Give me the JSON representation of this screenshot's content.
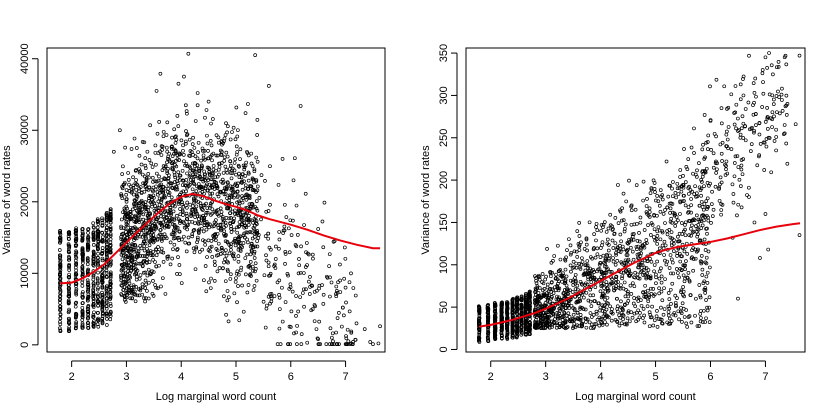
{
  "colors": {
    "points": "#000000",
    "trend": "#e8000b",
    "axes": "#000000",
    "background": "#ffffff"
  },
  "chart_data": [
    {
      "type": "scatter",
      "title": "",
      "xlabel": "Log marginal word count",
      "ylabel": "Variance of word rates",
      "xlim": [
        1.55,
        7.72
      ],
      "ylim": [
        -1000,
        41500
      ],
      "xticks": [
        2,
        3,
        4,
        5,
        6,
        7
      ],
      "xtick_labels": [
        "2",
        "3",
        "4",
        "5",
        "6",
        "7"
      ],
      "yticks": [
        0,
        10000,
        20000,
        30000,
        40000
      ],
      "ytick_labels": [
        "0",
        "10000",
        "20000",
        "30000",
        "40000"
      ],
      "grid": false,
      "point_style": "open circle",
      "columns": {
        "x": [
          1.79,
          1.95,
          2.08,
          2.2,
          2.3,
          2.4,
          2.48,
          2.56,
          2.64,
          2.71
        ],
        "ymin": [
          1500,
          1800,
          2000,
          2100,
          2200,
          2300,
          2400,
          2500,
          2600,
          2700
        ],
        "ymax": [
          16000,
          16000,
          16500,
          16800,
          17000,
          17300,
          17600,
          18000,
          18500,
          19000
        ]
      },
      "cloud": {
        "center": [
          4.0,
          20000
        ],
        "xrange": [
          2.9,
          5.4
        ],
        "yrange": [
          6000,
          36000
        ]
      },
      "outliers": [
        [
          4.13,
          40700
        ],
        [
          5.35,
          40500
        ],
        [
          3.62,
          37900
        ],
        [
          4.05,
          37500
        ],
        [
          3.95,
          36500
        ],
        [
          5.6,
          36200
        ],
        [
          3.55,
          35500
        ],
        [
          4.3,
          35200
        ],
        [
          6.18,
          33400
        ],
        [
          2.77,
          27000
        ],
        [
          2.88,
          30000
        ],
        [
          4.5,
          34000
        ],
        [
          5.85,
          26000
        ],
        [
          6.05,
          23000
        ],
        [
          6.5,
          16200
        ],
        [
          6.8,
          14500
        ],
        [
          6.35,
          9500
        ],
        [
          6.6,
          7000
        ],
        [
          6.9,
          9000
        ],
        [
          7.0,
          8000
        ],
        [
          6.4,
          5000
        ],
        [
          6.95,
          5200
        ],
        [
          7.2,
          3000
        ],
        [
          7.35,
          2200
        ],
        [
          6.75,
          1000
        ],
        [
          6.5,
          800
        ],
        [
          7.05,
          500
        ],
        [
          7.45,
          400
        ],
        [
          7.63,
          2600
        ],
        [
          7.1,
          200
        ],
        [
          6.2,
          1500
        ],
        [
          6.0,
          2500
        ],
        [
          5.8,
          5000
        ],
        [
          5.65,
          6500
        ],
        [
          6.15,
          12000
        ],
        [
          5.9,
          13000
        ],
        [
          7.6,
          200
        ],
        [
          7.5,
          100
        ],
        [
          6.3,
          300
        ]
      ],
      "series": [
        {
          "mode": "line",
          "x": [
            1.79,
            2.0,
            2.2,
            2.4,
            2.6,
            2.8,
            3.0,
            3.2,
            3.4,
            3.6,
            3.8,
            4.0,
            4.2,
            4.4,
            4.6,
            4.8,
            5.0,
            5.2,
            5.4,
            5.6,
            5.8,
            6.0,
            6.3,
            6.6,
            6.9,
            7.2,
            7.5,
            7.63
          ],
          "y": [
            8600,
            8700,
            9300,
            10200,
            11300,
            12800,
            14300,
            15800,
            17200,
            18600,
            19800,
            20700,
            21100,
            20800,
            20200,
            19700,
            19300,
            18800,
            18100,
            17600,
            17200,
            16800,
            16100,
            15300,
            14600,
            14000,
            13500,
            13500
          ]
        }
      ]
    },
    {
      "type": "scatter",
      "title": "",
      "xlabel": "Log marginal word count",
      "ylabel": "Variance of word rates",
      "xlim": [
        1.55,
        7.72
      ],
      "ylim": [
        -3,
        356
      ],
      "xticks": [
        2,
        3,
        4,
        5,
        6,
        7
      ],
      "xtick_labels": [
        "2",
        "3",
        "4",
        "5",
        "6",
        "7"
      ],
      "yticks": [
        0,
        50,
        100,
        150,
        200,
        250,
        300,
        350
      ],
      "ytick_labels": [
        "0",
        "50",
        "100",
        "150",
        "200",
        "250",
        "300",
        "350"
      ],
      "grid": false,
      "point_style": "open circle",
      "columns": {
        "x": [
          1.79,
          1.95,
          2.08,
          2.2,
          2.3,
          2.4,
          2.48,
          2.56,
          2.64,
          2.71
        ],
        "ymin": [
          8,
          9,
          10,
          11,
          12,
          13,
          14,
          15,
          16,
          17
        ],
        "ymax": [
          52,
          53,
          55,
          57,
          58,
          60,
          62,
          64,
          66,
          70
        ]
      },
      "cloud": {
        "center": [
          4.0,
          85
        ],
        "xrange": [
          2.8,
          6.0
        ],
        "yrange": [
          25,
          200
        ]
      },
      "outliers": [
        [
          7.62,
          347
        ],
        [
          7.0,
          345
        ],
        [
          6.95,
          330
        ],
        [
          6.55,
          313
        ],
        [
          6.6,
          300
        ],
        [
          6.8,
          303
        ],
        [
          7.3,
          308
        ],
        [
          7.25,
          298
        ],
        [
          7.4,
          290
        ],
        [
          6.45,
          280
        ],
        [
          6.2,
          285
        ],
        [
          7.55,
          266
        ],
        [
          7.35,
          265
        ],
        [
          6.5,
          258
        ],
        [
          6.0,
          270
        ],
        [
          5.95,
          245
        ],
        [
          6.3,
          240
        ],
        [
          5.7,
          232
        ],
        [
          6.1,
          222
        ],
        [
          5.9,
          210
        ],
        [
          5.5,
          205
        ],
        [
          5.3,
          190
        ],
        [
          6.4,
          195
        ],
        [
          6.7,
          180
        ],
        [
          7.0,
          160
        ],
        [
          6.8,
          150
        ],
        [
          6.9,
          108
        ],
        [
          7.62,
          135
        ],
        [
          6.5,
          60
        ],
        [
          7.05,
          118
        ],
        [
          5.2,
          222
        ],
        [
          5.45,
          212
        ],
        [
          5.05,
          175
        ],
        [
          5.6,
          168
        ]
      ],
      "series": [
        {
          "mode": "line",
          "x": [
            1.79,
            2.0,
            2.2,
            2.4,
            2.6,
            2.8,
            3.0,
            3.2,
            3.4,
            3.6,
            3.8,
            4.0,
            4.2,
            4.4,
            4.6,
            4.8,
            5.0,
            5.2,
            5.4,
            5.6,
            5.8,
            6.0,
            6.3,
            6.6,
            6.9,
            7.2,
            7.5,
            7.63
          ],
          "y": [
            27,
            29,
            32,
            35,
            39,
            43,
            48,
            54,
            60,
            67,
            74,
            81,
            88,
            95,
            102,
            108,
            114,
            118,
            121,
            123,
            125,
            127,
            131,
            136,
            141,
            145,
            148,
            149
          ]
        }
      ]
    }
  ]
}
